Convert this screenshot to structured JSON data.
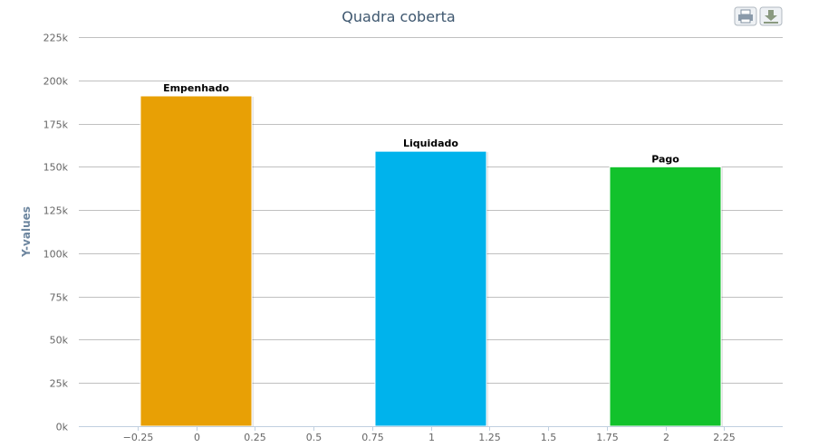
{
  "chart_data": {
    "type": "bar",
    "title": "Quadra coberta",
    "ylabel": "Y-values",
    "xlabel": "",
    "xlim": [
      -0.5,
      2.5
    ],
    "ylim": [
      0,
      225000
    ],
    "x_ticks": [
      -0.25,
      0,
      0.25,
      0.5,
      0.75,
      1,
      1.25,
      1.5,
      1.75,
      2,
      2.25
    ],
    "x_tick_labels": [
      "−0.25",
      "0",
      "0.25",
      "0.5",
      "0.75",
      "1",
      "1.25",
      "1.5",
      "1.75",
      "2",
      "2.25"
    ],
    "y_ticks": [
      0,
      25000,
      50000,
      75000,
      100000,
      125000,
      150000,
      175000,
      200000,
      225000
    ],
    "y_tick_labels": [
      "0k",
      "25k",
      "50k",
      "75k",
      "100k",
      "125k",
      "150k",
      "175k",
      "200k",
      "225k"
    ],
    "bar_width": 0.475,
    "grid": true,
    "bars": [
      {
        "x": 0,
        "value": 191000,
        "label": "Empenhado",
        "color": "#e8a005"
      },
      {
        "x": 1,
        "value": 159000,
        "label": "Liquidado",
        "color": "#00b3ec"
      },
      {
        "x": 2,
        "value": 150000,
        "label": "Pago",
        "color": "#12c22c"
      }
    ]
  },
  "toolbar": {
    "print_icon": "printer-icon",
    "export_icon": "download-icon"
  }
}
